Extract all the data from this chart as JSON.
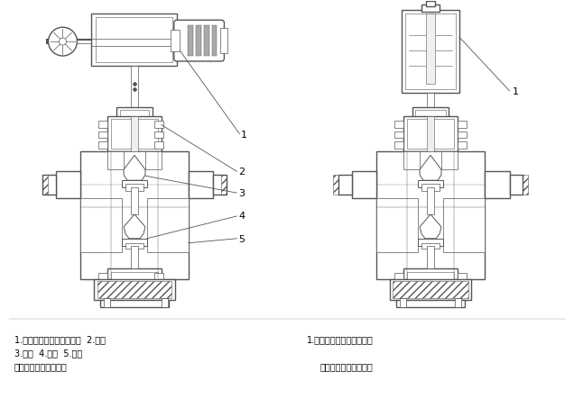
{
  "bg_color": "#ffffff",
  "line_color": "#555555",
  "fig_width": 6.36,
  "fig_height": 4.63,
  "left_labels": {
    "label1": "1.电动执行机构（普通型）  2.阀盖",
    "label2": "3.阀芯  4.阀座  5.阀体",
    "label3": "普通型电动双座调节阀"
  },
  "right_labels": {
    "label1": "1.电动执行机构（电子型）",
    "label2": "电子型电动双座调节阀"
  }
}
